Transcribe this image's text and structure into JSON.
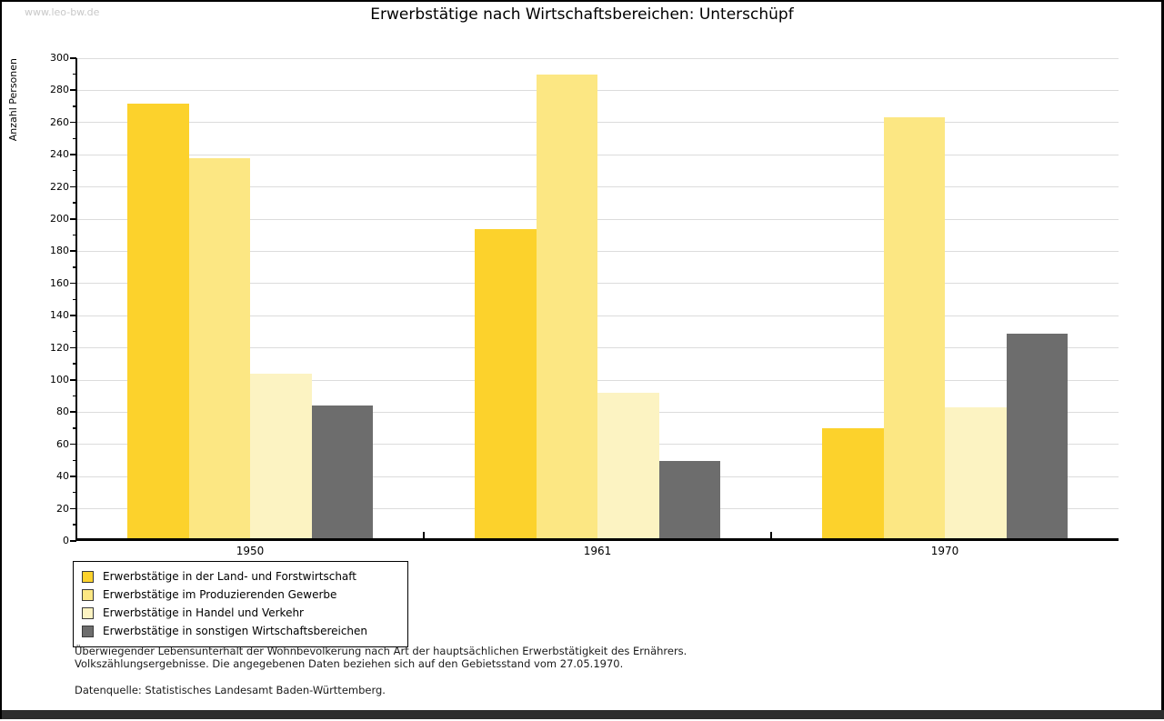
{
  "window": {
    "watermark": "www.leo-bw.de"
  },
  "chart_data": {
    "type": "bar",
    "title": "Erwerbstätige nach Wirtschaftsbereichen: Unterschüpf",
    "ylabel": "Anzahl Personen",
    "xlabel": "",
    "categories": [
      "1950",
      "1961",
      "1970"
    ],
    "series": [
      {
        "name": "Erwerbstätige in der Land- und Forstwirtschaft",
        "color": "#FCD22C",
        "values": [
          272,
          194,
          70
        ]
      },
      {
        "name": "Erwerbstätige im Produzierenden Gewerbe",
        "color": "#FCE783",
        "values": [
          238,
          290,
          263
        ]
      },
      {
        "name": "Erwerbstätige in Handel und Verkehr",
        "color": "#FCF3C2",
        "values": [
          104,
          92,
          83
        ]
      },
      {
        "name": "Erwerbstätige in sonstigen Wirtschaftsbereichen",
        "color": "#6D6D6D",
        "values": [
          84,
          50,
          129
        ]
      }
    ],
    "ylim": [
      0,
      300
    ],
    "ytick_step": 20,
    "yminor_step": 10,
    "grid": true,
    "gridline_color": "#dcdcdc",
    "legend_position": "bottom-left"
  },
  "footnotes": {
    "line1": "Überwiegender Lebensunterhalt der Wohnbevölkerung nach Art der hauptsächlichen Erwerbstätigkeit des Ernährers.",
    "line2": "Volkszählungsergebnisse. Die angegebenen Daten beziehen sich auf den Gebietsstand vom 27.05.1970.",
    "source": "Datenquelle: Statistisches Landesamt Baden-Württemberg."
  }
}
